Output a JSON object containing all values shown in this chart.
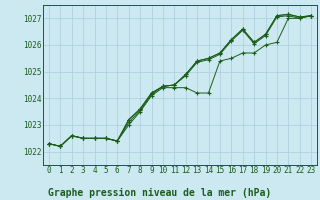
{
  "title": "Graphe pression niveau de la mer (hPa)",
  "bg_color": "#cce8f0",
  "grid_color": "#aaccdd",
  "line_color": "#1a5e1a",
  "x_ticks": [
    0,
    1,
    2,
    3,
    4,
    5,
    6,
    7,
    8,
    9,
    10,
    11,
    12,
    13,
    14,
    15,
    16,
    17,
    18,
    19,
    20,
    21,
    22,
    23
  ],
  "ylim": [
    1021.5,
    1027.5
  ],
  "y_ticks": [
    1022,
    1023,
    1024,
    1025,
    1026,
    1027
  ],
  "series1": [
    1022.3,
    1022.2,
    1022.6,
    1022.5,
    1022.5,
    1022.5,
    1022.4,
    1023.0,
    1023.5,
    1024.1,
    1024.4,
    1024.4,
    1024.4,
    1024.2,
    1024.2,
    1025.4,
    1025.5,
    1025.7,
    1025.7,
    1026.0,
    1026.1,
    1027.0,
    1027.0,
    1027.1
  ],
  "series2": [
    1022.3,
    1022.2,
    1022.6,
    1022.5,
    1022.5,
    1022.5,
    1022.4,
    1023.1,
    1023.55,
    1024.15,
    1024.45,
    1024.5,
    1024.85,
    1025.35,
    1025.45,
    1025.65,
    1026.15,
    1026.55,
    1026.05,
    1026.35,
    1027.05,
    1027.1,
    1027.0,
    1027.1
  ],
  "series3": [
    1022.3,
    1022.2,
    1022.6,
    1022.5,
    1022.5,
    1022.5,
    1022.4,
    1023.2,
    1023.6,
    1024.2,
    1024.45,
    1024.5,
    1024.9,
    1025.4,
    1025.5,
    1025.7,
    1026.2,
    1026.6,
    1026.1,
    1026.4,
    1027.1,
    1027.15,
    1027.05,
    1027.1
  ],
  "series4": [
    1022.3,
    1022.2,
    1022.6,
    1022.5,
    1022.5,
    1022.5,
    1022.4,
    1023.2,
    1023.6,
    1024.2,
    1024.45,
    1024.5,
    1024.9,
    1025.4,
    1025.5,
    1025.7,
    1026.2,
    1026.6,
    1026.1,
    1026.4,
    1027.1,
    1027.15,
    1027.05,
    1027.1
  ],
  "title_fontsize": 7,
  "tick_fontsize": 5.5
}
